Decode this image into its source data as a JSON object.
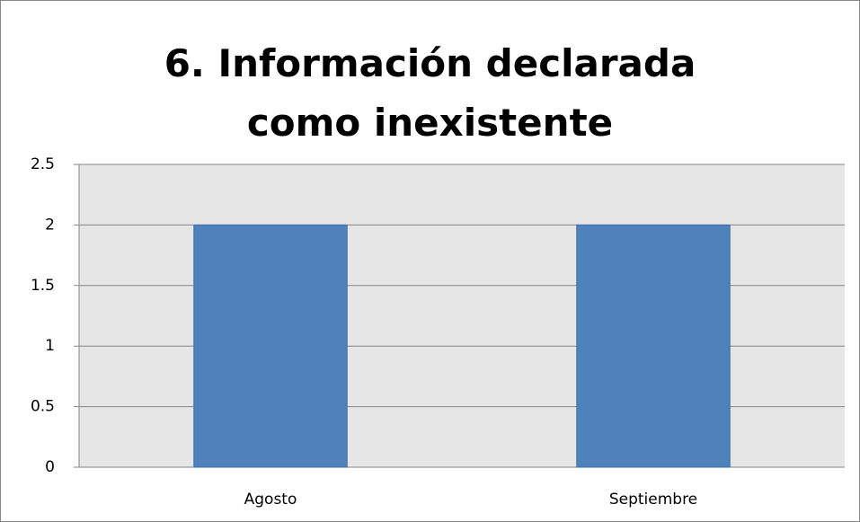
{
  "chart_data": {
    "type": "bar",
    "title": "6. Información declarada como inexistente",
    "categories": [
      "Agosto",
      "Septiembre"
    ],
    "values": [
      2,
      2
    ],
    "color": "#4f81bd",
    "ylim": [
      0,
      2.5
    ],
    "yticks": [
      0,
      0.5,
      1,
      1.5,
      2,
      2.5
    ],
    "grid": true
  }
}
